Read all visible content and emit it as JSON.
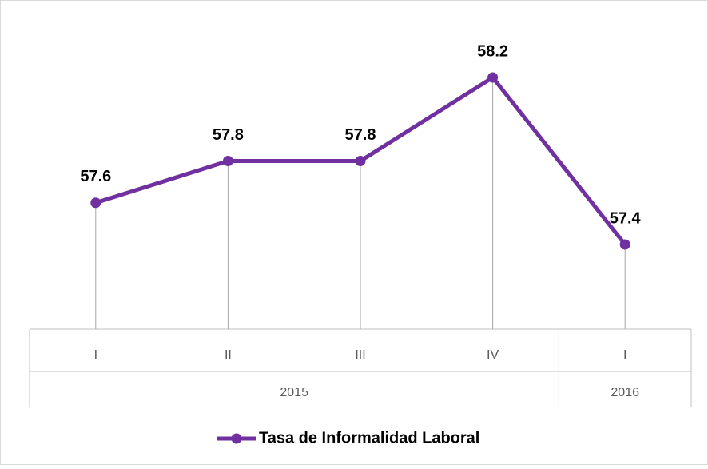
{
  "chart_data": {
    "type": "line",
    "categories": [
      "I",
      "II",
      "III",
      "IV",
      "I"
    ],
    "category_groups": [
      "2015",
      "2015",
      "2015",
      "2015",
      "2016"
    ],
    "series": [
      {
        "name": "Tasa de Informalidad Laboral",
        "color": "#7030a0",
        "values": [
          57.6,
          57.8,
          57.8,
          58.2,
          57.4
        ]
      }
    ],
    "data_labels": true,
    "drop_lines": true,
    "legend": "bottom"
  }
}
